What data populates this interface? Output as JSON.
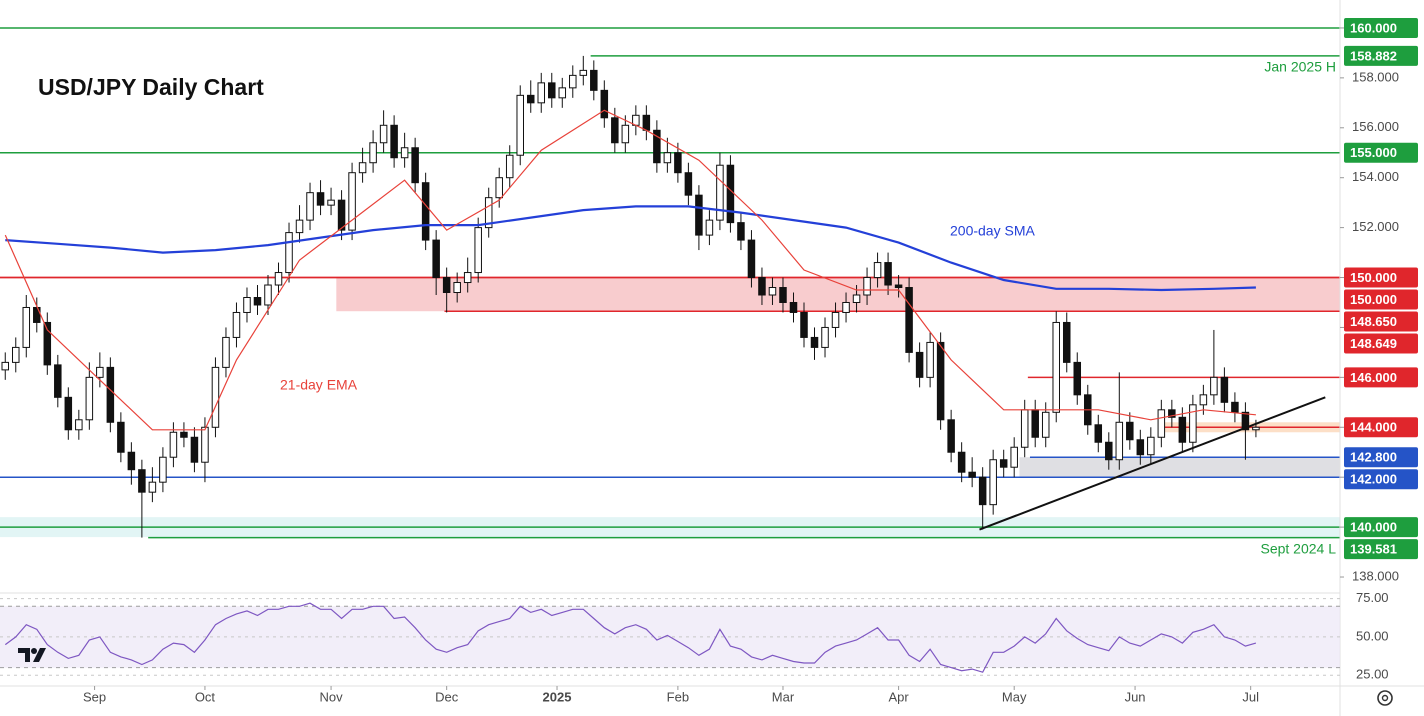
{
  "chart_data": {
    "type": "candlestick",
    "title": "USD/JPY Daily Chart",
    "xlim": [
      -0.5,
      127
    ],
    "ylim": [
      137.4,
      161.12
    ],
    "xticks": [
      {
        "value": 8.5,
        "label": "Sep"
      },
      {
        "value": 19,
        "label": "Oct"
      },
      {
        "value": 31,
        "label": "Nov"
      },
      {
        "value": 42,
        "label": "Dec"
      },
      {
        "value": 52.5,
        "label": "2025"
      },
      {
        "value": 64,
        "label": "Feb"
      },
      {
        "value": 74,
        "label": "Mar"
      },
      {
        "value": 85,
        "label": "Apr"
      },
      {
        "value": 96,
        "label": "May"
      },
      {
        "value": 107.5,
        "label": "Jun"
      },
      {
        "value": 118.5,
        "label": "Jul"
      }
    ],
    "yticks": [
      {
        "value": 138,
        "label": "138.000"
      },
      {
        "value": 140,
        "label": "140.000"
      },
      {
        "value": 142,
        "label": "142.000"
      },
      {
        "value": 144,
        "label": "144.000"
      },
      {
        "value": 146,
        "label": "146.000"
      },
      {
        "value": 148,
        "label": "148.000"
      },
      {
        "value": 150,
        "label": "150.000"
      },
      {
        "value": 152,
        "label": "152.000"
      },
      {
        "value": 154,
        "label": "154.000"
      },
      {
        "value": 156,
        "label": "156.000"
      },
      {
        "value": 158,
        "label": "158.000"
      },
      {
        "value": 160,
        "label": "160.000"
      }
    ],
    "up_color": "#ffffff",
    "down_color": "#111111",
    "candles": {
      "open": [
        146.3,
        146.6,
        147.2,
        148.8,
        148.2,
        146.5,
        145.2,
        143.9,
        144.3,
        146.0,
        146.4,
        144.2,
        143.0,
        142.3,
        141.4,
        141.8,
        142.8,
        143.8,
        143.6,
        142.6,
        144.0,
        146.4,
        147.6,
        148.6,
        149.2,
        148.9,
        149.7,
        150.2,
        151.8,
        152.3,
        153.4,
        152.9,
        153.1,
        151.9,
        154.2,
        154.6,
        155.4,
        156.1,
        154.8,
        155.2,
        153.8,
        151.5,
        150.0,
        149.4,
        149.8,
        150.2,
        152.0,
        153.2,
        154.0,
        154.9,
        157.3,
        157.0,
        157.8,
        157.2,
        157.6,
        158.1,
        158.3,
        157.5,
        156.4,
        155.4,
        156.1,
        156.5,
        155.9,
        154.6,
        155.0,
        154.2,
        153.3,
        151.7,
        152.3,
        154.5,
        152.2,
        151.5,
        150.0,
        149.3,
        149.6,
        149.0,
        148.6,
        147.6,
        147.2,
        148.0,
        148.6,
        149.0,
        149.3,
        150.0,
        150.6,
        149.7,
        149.6,
        147.0,
        146.0,
        147.4,
        144.3,
        143.0,
        142.2,
        142.0,
        140.9,
        142.7,
        142.4,
        143.2,
        144.7,
        143.6,
        144.6,
        148.2,
        146.6,
        145.3,
        144.1,
        143.4,
        142.7,
        144.2,
        143.5,
        142.9,
        143.6,
        144.7,
        144.4,
        143.4,
        144.9,
        145.3,
        146.0,
        145.0,
        144.6,
        143.9
      ],
      "high": [
        147.0,
        147.6,
        149.3,
        149.2,
        148.6,
        146.9,
        145.6,
        144.7,
        146.6,
        147.0,
        146.8,
        144.6,
        143.4,
        142.7,
        142.4,
        143.2,
        144.2,
        144.2,
        144.0,
        144.4,
        146.8,
        148.0,
        149.0,
        149.6,
        149.7,
        150.1,
        150.6,
        152.2,
        152.9,
        153.8,
        153.9,
        153.6,
        153.5,
        154.6,
        155.2,
        155.9,
        156.7,
        156.5,
        155.8,
        155.6,
        154.2,
        151.9,
        150.4,
        150.2,
        150.8,
        152.4,
        153.6,
        154.4,
        155.3,
        157.7,
        157.9,
        158.2,
        158.2,
        158.0,
        158.5,
        158.88,
        158.7,
        157.9,
        156.8,
        156.5,
        156.9,
        156.9,
        156.3,
        155.6,
        155.4,
        154.6,
        153.7,
        152.7,
        155.0,
        154.9,
        152.6,
        151.9,
        150.4,
        150.0,
        150.0,
        149.4,
        149.0,
        148.0,
        148.4,
        149.0,
        149.4,
        149.7,
        150.4,
        151.0,
        151.0,
        150.1,
        150.0,
        147.4,
        147.8,
        147.8,
        144.7,
        143.4,
        142.8,
        142.4,
        143.1,
        143.1,
        143.6,
        145.1,
        145.1,
        145.0,
        148.65,
        148.6,
        147.0,
        145.7,
        144.5,
        143.8,
        146.2,
        144.6,
        143.9,
        144.0,
        145.1,
        145.1,
        144.8,
        145.3,
        145.7,
        147.9,
        146.4,
        145.4,
        145.0,
        144.3
      ],
      "low": [
        145.9,
        146.2,
        146.8,
        147.8,
        146.1,
        144.8,
        143.5,
        143.5,
        143.9,
        145.6,
        143.8,
        142.6,
        141.7,
        139.58,
        141.0,
        141.4,
        142.4,
        143.2,
        142.2,
        141.8,
        143.6,
        146.0,
        147.2,
        148.2,
        148.5,
        148.5,
        149.3,
        149.8,
        151.4,
        151.9,
        152.5,
        152.5,
        151.5,
        151.5,
        153.8,
        154.2,
        155.0,
        154.4,
        154.4,
        153.4,
        151.1,
        149.3,
        148.6,
        149.0,
        149.4,
        149.8,
        151.6,
        152.8,
        153.6,
        154.5,
        156.6,
        156.6,
        156.8,
        156.8,
        157.2,
        157.7,
        157.1,
        156.0,
        155.0,
        155.0,
        155.7,
        155.5,
        154.2,
        154.2,
        153.8,
        152.9,
        151.1,
        151.3,
        151.9,
        151.8,
        151.1,
        149.6,
        148.9,
        148.9,
        148.6,
        148.2,
        147.2,
        146.7,
        146.8,
        147.6,
        148.2,
        148.6,
        148.9,
        149.6,
        149.3,
        149.2,
        146.6,
        145.6,
        145.6,
        143.9,
        142.6,
        141.8,
        141.6,
        139.9,
        140.5,
        142.0,
        142.0,
        142.8,
        143.2,
        143.2,
        144.2,
        146.2,
        144.9,
        143.7,
        143.0,
        142.3,
        142.3,
        143.1,
        142.5,
        142.5,
        143.2,
        144.0,
        143.0,
        143.0,
        144.5,
        144.9,
        144.6,
        144.2,
        142.7,
        143.6
      ],
      "close": [
        146.6,
        147.2,
        148.8,
        148.2,
        146.5,
        145.2,
        143.9,
        144.3,
        146.0,
        146.4,
        144.2,
        143.0,
        142.3,
        141.4,
        141.8,
        142.8,
        143.8,
        143.6,
        142.6,
        144.0,
        146.4,
        147.6,
        148.6,
        149.2,
        148.9,
        149.7,
        150.2,
        151.8,
        152.3,
        153.4,
        152.9,
        153.1,
        151.9,
        154.2,
        154.6,
        155.4,
        156.1,
        154.8,
        155.2,
        153.8,
        151.5,
        150.0,
        149.4,
        149.8,
        150.2,
        152.0,
        153.2,
        154.0,
        154.9,
        157.3,
        157.0,
        157.8,
        157.2,
        157.6,
        158.1,
        158.3,
        157.5,
        156.4,
        155.4,
        156.1,
        156.5,
        155.9,
        154.6,
        155.0,
        154.2,
        153.3,
        151.7,
        152.3,
        154.5,
        152.2,
        151.5,
        150.0,
        149.3,
        149.6,
        149.0,
        148.6,
        147.6,
        147.2,
        148.0,
        148.6,
        149.0,
        149.3,
        150.0,
        150.6,
        149.7,
        149.6,
        147.0,
        146.0,
        147.4,
        144.3,
        143.0,
        142.2,
        142.0,
        140.9,
        142.7,
        142.4,
        143.2,
        144.7,
        143.6,
        144.6,
        148.2,
        146.6,
        145.3,
        144.1,
        143.4,
        142.7,
        144.2,
        143.5,
        142.9,
        143.6,
        144.7,
        144.4,
        143.4,
        144.9,
        145.3,
        146.0,
        145.0,
        144.6,
        143.9,
        144.0
      ]
    },
    "series": [
      {
        "name": "200-day SMA",
        "color": "#2440d8",
        "x": [
          0,
          5,
          10,
          15,
          20,
          25,
          30,
          35,
          40,
          45,
          50,
          55,
          60,
          65,
          70,
          75,
          80,
          85,
          90,
          95,
          100,
          105,
          110,
          115,
          119
        ],
        "values": [
          151.5,
          151.35,
          151.2,
          151.0,
          151.1,
          151.3,
          151.6,
          151.9,
          152.1,
          152.1,
          152.4,
          152.7,
          152.85,
          152.85,
          152.6,
          152.3,
          152.0,
          151.4,
          150.6,
          149.9,
          149.55,
          149.55,
          149.5,
          149.55,
          149.6
        ]
      },
      {
        "name": "21-day EMA",
        "color": "#e8423a",
        "x": [
          0,
          4,
          9,
          14,
          19,
          22,
          28,
          33,
          38,
          42,
          47,
          51,
          57,
          61,
          66,
          72,
          76,
          81,
          85,
          90,
          95,
          99,
          104,
          109,
          114,
          119
        ],
        "values": [
          151.7,
          147.9,
          145.9,
          143.9,
          143.9,
          146.7,
          150.7,
          152.3,
          153.9,
          151.9,
          153.1,
          155.1,
          156.7,
          155.9,
          154.7,
          152.3,
          150.3,
          149.5,
          149.5,
          146.7,
          144.7,
          144.7,
          144.7,
          144.3,
          144.7,
          144.5
        ]
      }
    ],
    "trendline": {
      "color": "#111111",
      "x": [
        92.7,
        125.6
      ],
      "values": [
        139.9,
        145.2
      ]
    },
    "zones": [
      {
        "from": 31.5,
        "low": 148.65,
        "high": 150,
        "color": "#f7c3c6"
      },
      {
        "from": 110.3,
        "low": 143.8,
        "high": 144.2,
        "color": "#fcd9bd"
      },
      {
        "from": 96.5,
        "low": 142,
        "high": 142.8,
        "color": "#d9d9de"
      },
      {
        "from": -0.5,
        "low": 139.6,
        "high": 140.4,
        "color": "#ddf3f3"
      }
    ],
    "levels": [
      {
        "value": 160,
        "label": "160.000",
        "color": "#1e9e3e",
        "from": -0.5
      },
      {
        "value": 158.882,
        "label": "158.882",
        "color": "#1e9e3e",
        "from": 55.7
      },
      {
        "value": 155,
        "label": "155.000",
        "color": "#1e9e3e",
        "from": -0.5
      },
      {
        "value": 150,
        "label": "150.000",
        "color": "#e0262c",
        "from": -0.5
      },
      {
        "value": 150,
        "label": "150.000",
        "color": "#e0262c",
        "from": -0.5
      },
      {
        "value": 148.65,
        "label": "148.650",
        "color": "#e0262c",
        "from": 41.8
      },
      {
        "value": 148.649,
        "label": "148.649",
        "color": "#e0262c",
        "from": 41.8
      },
      {
        "value": 146,
        "label": "146.000",
        "color": "#e0262c",
        "from": 97.3
      },
      {
        "value": 144,
        "label": "144.000",
        "color": "#e0262c",
        "from": 110.3
      },
      {
        "value": 142.8,
        "label": "142.800",
        "color": "#2554c7",
        "from": 97.5
      },
      {
        "value": 142,
        "label": "142.000",
        "color": "#2554c7",
        "from": -0.5
      },
      {
        "value": 140,
        "label": "140.000",
        "color": "#1e9e3e",
        "from": -0.5
      },
      {
        "value": 139.581,
        "label": "139.581",
        "color": "#1e9e3e",
        "from": 13.6
      }
    ],
    "annotations": [
      "Jan 2025 H",
      "Sept 2024 L"
    ],
    "rsi": {
      "color": "#7e57c2",
      "ylim": [
        18,
        78
      ],
      "band": [
        30,
        70
      ],
      "yticks": [
        {
          "value": 25,
          "label": "25.00"
        },
        {
          "value": 50,
          "label": "50.00"
        },
        {
          "value": 75,
          "label": "75.00"
        }
      ],
      "values": [
        45,
        50,
        58,
        55,
        45,
        40,
        36,
        38,
        48,
        50,
        40,
        37,
        35,
        32,
        35,
        42,
        46,
        45,
        40,
        48,
        58,
        62,
        65,
        67,
        64,
        68,
        68,
        70,
        70,
        72,
        68,
        68,
        62,
        68,
        68,
        70,
        70,
        62,
        63,
        56,
        48,
        42,
        40,
        43,
        45,
        54,
        58,
        60,
        62,
        70,
        66,
        68,
        64,
        66,
        68,
        68,
        62,
        56,
        52,
        56,
        58,
        55,
        48,
        51,
        47,
        43,
        38,
        42,
        55,
        44,
        42,
        37,
        35,
        38,
        36,
        34,
        33,
        33,
        40,
        44,
        46,
        48,
        52,
        56,
        48,
        48,
        38,
        34,
        42,
        32,
        30,
        28,
        29,
        27,
        40,
        40,
        44,
        50,
        46,
        52,
        62,
        54,
        49,
        45,
        43,
        41,
        50,
        46,
        44,
        48,
        52,
        50,
        46,
        53,
        55,
        58,
        50,
        48,
        44,
        46
      ]
    }
  }
}
